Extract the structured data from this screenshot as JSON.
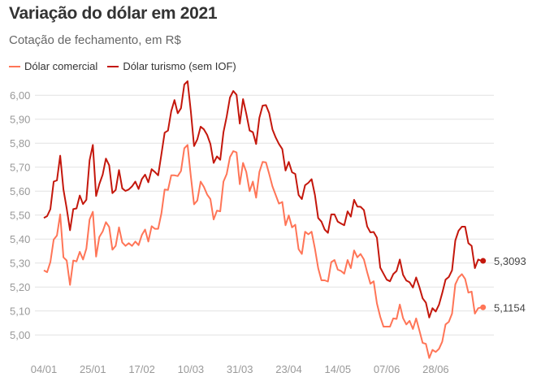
{
  "chart_data": {
    "type": "line",
    "title": "Variação do dólar em 2021",
    "subtitle": "Cotação de fechamento, em R$",
    "ylim": [
      4.9,
      6.07
    ],
    "y_ticks": [
      "5,00",
      "5,10",
      "5,20",
      "5,30",
      "5,40",
      "5,50",
      "5,60",
      "5,70",
      "5,80",
      "5,90",
      "6,00"
    ],
    "y_tick_values": [
      5.0,
      5.1,
      5.2,
      5.3,
      5.4,
      5.5,
      5.6,
      5.7,
      5.8,
      5.9,
      6.0
    ],
    "x_ticks": [
      {
        "label": "04/01",
        "index": 0
      },
      {
        "label": "25/01",
        "index": 15
      },
      {
        "label": "17/02",
        "index": 30
      },
      {
        "label": "10/03",
        "index": 45
      },
      {
        "label": "31/03",
        "index": 60
      },
      {
        "label": "23/04",
        "index": 75
      },
      {
        "label": "14/05",
        "index": 90
      },
      {
        "label": "07/06",
        "index": 105
      },
      {
        "label": "28/06",
        "index": 120
      }
    ],
    "grid": true,
    "legend": "top-left",
    "series": [
      {
        "name": "Dólar comercial",
        "color": "#ff7557",
        "end_label": "5,1154",
        "values": [
          5.27,
          5.262,
          5.304,
          5.398,
          5.415,
          5.503,
          5.324,
          5.311,
          5.209,
          5.311,
          5.307,
          5.347,
          5.315,
          5.36,
          5.482,
          5.514,
          5.327,
          5.409,
          5.432,
          5.471,
          5.451,
          5.356,
          5.372,
          5.449,
          5.386,
          5.372,
          5.383,
          5.372,
          5.39,
          5.375,
          5.417,
          5.44,
          5.39,
          5.454,
          5.443,
          5.443,
          5.507,
          5.607,
          5.605,
          5.666,
          5.666,
          5.663,
          5.684,
          5.779,
          5.793,
          5.663,
          5.545,
          5.561,
          5.64,
          5.618,
          5.586,
          5.567,
          5.482,
          5.519,
          5.516,
          5.64,
          5.672,
          5.742,
          5.767,
          5.762,
          5.629,
          5.718,
          5.68,
          5.6,
          5.64,
          5.573,
          5.68,
          5.722,
          5.72,
          5.672,
          5.62,
          5.584,
          5.548,
          5.555,
          5.458,
          5.499,
          5.449,
          5.46,
          5.358,
          5.338,
          5.431,
          5.42,
          5.431,
          5.36,
          5.279,
          5.228,
          5.228,
          5.223,
          5.304,
          5.313,
          5.273,
          5.267,
          5.256,
          5.313,
          5.279,
          5.353,
          5.324,
          5.338,
          5.315,
          5.262,
          5.214,
          5.224,
          5.132,
          5.076,
          5.035,
          5.035,
          5.035,
          5.069,
          5.067,
          5.127,
          5.07,
          5.044,
          5.059,
          5.025,
          5.069,
          5.019,
          4.967,
          4.963,
          4.904,
          4.938,
          4.929,
          4.942,
          4.972,
          5.044,
          5.055,
          5.089,
          5.211,
          5.24,
          5.254,
          5.234,
          5.177,
          5.181,
          5.089,
          5.112,
          5.1154
        ]
      },
      {
        "name": "Dólar turismo (sem IOF)",
        "color": "#c4170c",
        "end_label": "5,3093",
        "values": [
          5.488,
          5.496,
          5.525,
          5.64,
          5.645,
          5.748,
          5.607,
          5.528,
          5.437,
          5.525,
          5.528,
          5.582,
          5.546,
          5.564,
          5.729,
          5.793,
          5.58,
          5.63,
          5.669,
          5.736,
          5.708,
          5.592,
          5.605,
          5.688,
          5.612,
          5.601,
          5.607,
          5.62,
          5.64,
          5.609,
          5.65,
          5.669,
          5.637,
          5.692,
          5.68,
          5.666,
          5.754,
          5.844,
          5.853,
          5.934,
          5.98,
          5.925,
          5.946,
          6.045,
          6.059,
          5.934,
          5.788,
          5.816,
          5.869,
          5.858,
          5.835,
          5.797,
          5.718,
          5.745,
          5.731,
          5.846,
          5.912,
          5.991,
          6.018,
          6.002,
          5.882,
          5.984,
          5.923,
          5.853,
          5.846,
          5.797,
          5.906,
          5.957,
          5.959,
          5.925,
          5.858,
          5.824,
          5.797,
          5.776,
          5.686,
          5.722,
          5.679,
          5.672,
          5.584,
          5.567,
          5.625,
          5.635,
          5.65,
          5.584,
          5.488,
          5.473,
          5.44,
          5.426,
          5.503,
          5.503,
          5.473,
          5.465,
          5.458,
          5.516,
          5.494,
          5.564,
          5.536,
          5.535,
          5.521,
          5.453,
          5.428,
          5.43,
          5.406,
          5.281,
          5.256,
          5.231,
          5.224,
          5.254,
          5.267,
          5.315,
          5.251,
          5.227,
          5.22,
          5.198,
          5.24,
          5.2,
          5.153,
          5.135,
          5.073,
          5.112,
          5.098,
          5.126,
          5.175,
          5.231,
          5.242,
          5.27,
          5.394,
          5.435,
          5.452,
          5.452,
          5.383,
          5.372,
          5.279,
          5.315,
          5.3093
        ]
      }
    ]
  }
}
